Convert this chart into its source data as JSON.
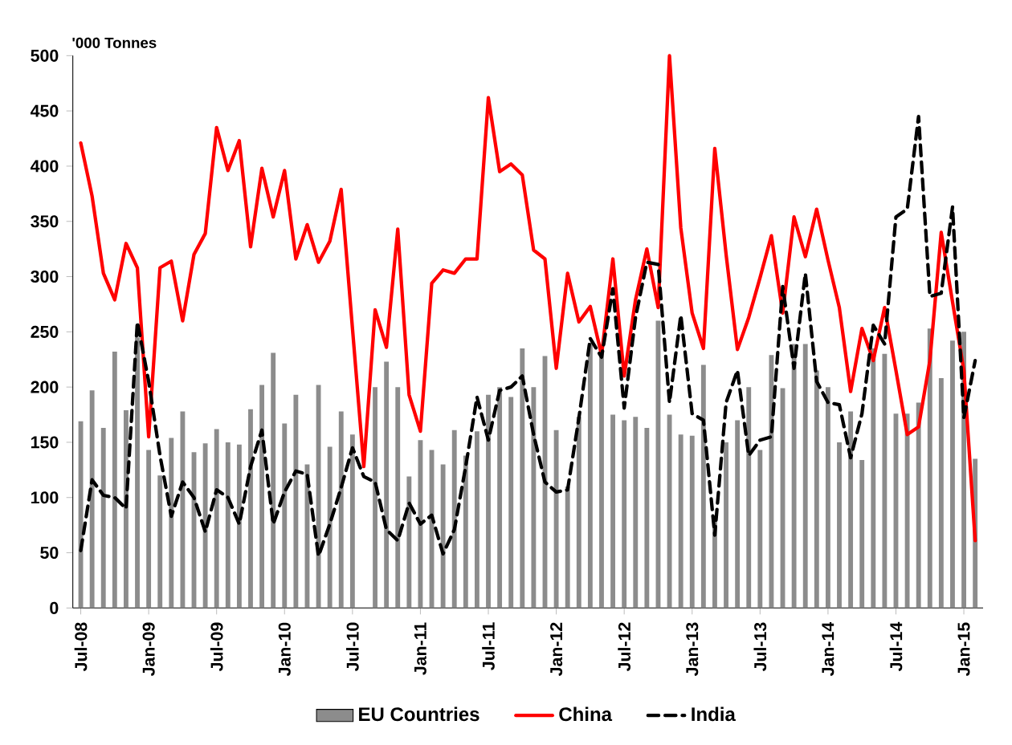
{
  "chart_data": {
    "type": "bar",
    "ylabel": "'000 Tonnes",
    "categories": [
      "Jul-08",
      null,
      null,
      null,
      null,
      null,
      "Jan-09",
      null,
      null,
      null,
      null,
      null,
      "Jul-09",
      null,
      null,
      null,
      null,
      null,
      "Jan-10",
      null,
      null,
      null,
      null,
      null,
      "Jul-10",
      null,
      null,
      null,
      null,
      null,
      "Jan-11",
      null,
      null,
      null,
      null,
      null,
      "Jul-11",
      null,
      null,
      null,
      null,
      null,
      "Jan-12",
      null,
      null,
      null,
      null,
      null,
      "Jul-12",
      null,
      null,
      null,
      null,
      null,
      "Jan-13",
      null,
      null,
      null,
      null,
      null,
      "Jul-13",
      null,
      null,
      null,
      null,
      null,
      "Jan-14",
      null,
      null,
      null,
      null,
      null,
      "Jul-14",
      null,
      null,
      null,
      null,
      null,
      "Jan-15",
      null
    ],
    "ylim": [
      0,
      500
    ],
    "yticks": [
      0,
      50,
      100,
      150,
      200,
      250,
      300,
      350,
      400,
      450,
      500
    ],
    "legend": "bottom",
    "series": [
      {
        "name": "EU Countries",
        "color": "#8c8c8c",
        "values": [
          169,
          197,
          163,
          232,
          179,
          245,
          143,
          120,
          154,
          178,
          141,
          149,
          162,
          150,
          148,
          180,
          202,
          231,
          167,
          193,
          130,
          202,
          146,
          178,
          157,
          null,
          200,
          223,
          200,
          119,
          152,
          143,
          130,
          161,
          138,
          160,
          193,
          200,
          191,
          235,
          200,
          228,
          161,
          110,
          173,
          240,
          230,
          175,
          170,
          173,
          163,
          260,
          175,
          157,
          156,
          220,
          80,
          150,
          170,
          200,
          143,
          229,
          199,
          239,
          239,
          215,
          200,
          150,
          178,
          134,
          235,
          230,
          176,
          176,
          186,
          253,
          208,
          242,
          250,
          135
        ]
      },
      {
        "name": "China",
        "type": "line",
        "color": "#ff0000",
        "line_style": "solid",
        "values": [
          421,
          373,
          303,
          279,
          330,
          308,
          155,
          308,
          314,
          260,
          320,
          339,
          435,
          396,
          423,
          327,
          398,
          354,
          396,
          316,
          347,
          313,
          332,
          379,
          253,
          128,
          270,
          236,
          343,
          193,
          160,
          294,
          306,
          303,
          316,
          316,
          462,
          395,
          402,
          392,
          324,
          316,
          217,
          303,
          259,
          273,
          229,
          316,
          210,
          279,
          325,
          272,
          500,
          344,
          267,
          235,
          416,
          320,
          234,
          263,
          299,
          337,
          267,
          354,
          318,
          361,
          315,
          272,
          196,
          253,
          224,
          272,
          215,
          157,
          164,
          224,
          340,
          277,
          215,
          61
        ]
      },
      {
        "name": "India",
        "type": "line",
        "color": "#000000",
        "line_style": "dashed",
        "values": [
          52,
          116,
          102,
          100,
          90,
          259,
          205,
          138,
          83,
          114,
          100,
          69,
          107,
          100,
          76,
          128,
          161,
          76,
          105,
          124,
          121,
          47,
          76,
          109,
          145,
          119,
          114,
          71,
          61,
          95,
          76,
          84,
          49,
          71,
          128,
          191,
          152,
          197,
          200,
          210,
          157,
          114,
          105,
          107,
          172,
          244,
          227,
          289,
          181,
          263,
          313,
          311,
          186,
          265,
          176,
          170,
          66,
          186,
          215,
          138,
          152,
          155,
          291,
          217,
          303,
          205,
          186,
          184,
          136,
          176,
          256,
          239,
          354,
          361,
          445,
          282,
          285,
          363,
          172,
          224
        ]
      }
    ]
  }
}
